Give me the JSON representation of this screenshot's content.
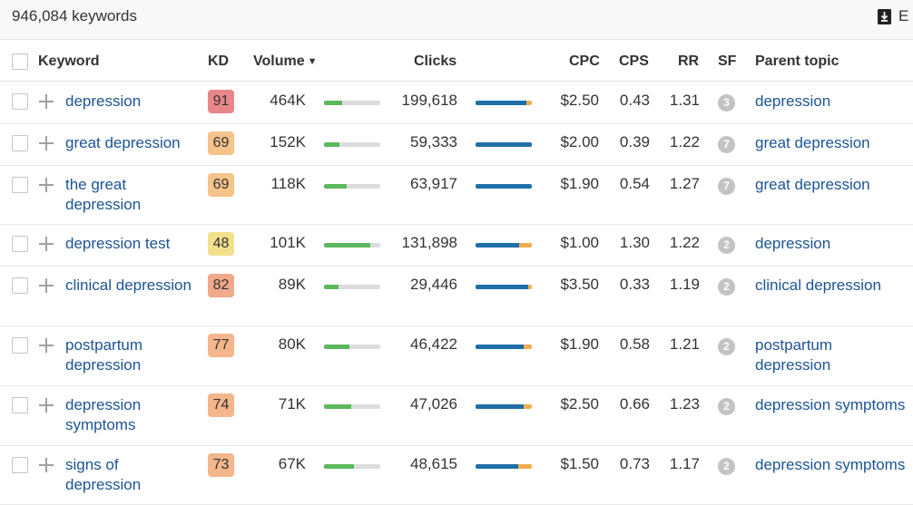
{
  "summary": {
    "keyword_count": "946,084 keywords",
    "export_label": "E"
  },
  "colors": {
    "link": "#1c5494",
    "volume_bar": "#5cb85c",
    "clicks_organic": "#1f6fa8",
    "clicks_paid": "#f0ad4e",
    "bar_track": "#dcdcdc"
  },
  "columns": {
    "keyword": "Keyword",
    "kd": "KD",
    "volume": "Volume",
    "clicks": "Clicks",
    "cpc": "CPC",
    "cps": "CPS",
    "rr": "RR",
    "sf": "SF",
    "parent_topic": "Parent topic"
  },
  "rows": [
    {
      "keyword": "depression",
      "kd": "91",
      "kd_color": "#e8878a",
      "volume": "464K",
      "volume_fill": 0.32,
      "clicks": "199,618",
      "clicks_organic": 0.9,
      "clicks_paid": 0.1,
      "cpc": "$2.50",
      "cps": "0.43",
      "rr": "1.31",
      "sf": "3",
      "parent_topic": "depression"
    },
    {
      "keyword": "great depression",
      "kd": "69",
      "kd_color": "#f6c38a",
      "volume": "152K",
      "volume_fill": 0.28,
      "clicks": "59,333",
      "clicks_organic": 1.0,
      "clicks_paid": 0.0,
      "cpc": "$2.00",
      "cps": "0.39",
      "rr": "1.22",
      "sf": "7",
      "parent_topic": "great depression"
    },
    {
      "keyword": "the great depression",
      "kd": "69",
      "kd_color": "#f6c38a",
      "volume": "118K",
      "volume_fill": 0.4,
      "clicks": "63,917",
      "clicks_organic": 1.0,
      "clicks_paid": 0.0,
      "cpc": "$1.90",
      "cps": "0.54",
      "rr": "1.27",
      "sf": "7",
      "parent_topic": "great depression"
    },
    {
      "keyword": "depression test",
      "kd": "48",
      "kd_color": "#f2e08d",
      "volume": "101K",
      "volume_fill": 0.83,
      "clicks": "131,898",
      "clicks_organic": 0.78,
      "clicks_paid": 0.22,
      "cpc": "$1.00",
      "cps": "1.30",
      "rr": "1.22",
      "sf": "2",
      "parent_topic": "depression"
    },
    {
      "keyword": "clinical depression",
      "kd": "82",
      "kd_color": "#f1a98a",
      "volume": "89K",
      "volume_fill": 0.25,
      "clicks": "29,446",
      "clicks_organic": 0.93,
      "clicks_paid": 0.07,
      "cpc": "$3.50",
      "cps": "0.33",
      "rr": "1.19",
      "sf": "2",
      "parent_topic": "clinical depression"
    },
    {
      "keyword": "postpartum depression",
      "kd": "77",
      "kd_color": "#f4b68a",
      "volume": "80K",
      "volume_fill": 0.45,
      "clicks": "46,422",
      "clicks_organic": 0.86,
      "clicks_paid": 0.14,
      "cpc": "$1.90",
      "cps": "0.58",
      "rr": "1.21",
      "sf": "2",
      "parent_topic": "postpartum depression"
    },
    {
      "keyword": "depression symptoms",
      "kd": "74",
      "kd_color": "#f4b68a",
      "volume": "71K",
      "volume_fill": 0.48,
      "clicks": "47,026",
      "clicks_organic": 0.86,
      "clicks_paid": 0.14,
      "cpc": "$2.50",
      "cps": "0.66",
      "rr": "1.23",
      "sf": "2",
      "parent_topic": "depression symptoms"
    },
    {
      "keyword": "signs of depression",
      "kd": "73",
      "kd_color": "#f4b68a",
      "volume": "67K",
      "volume_fill": 0.54,
      "clicks": "48,615",
      "clicks_organic": 0.75,
      "clicks_paid": 0.25,
      "cpc": "$1.50",
      "cps": "0.73",
      "rr": "1.17",
      "sf": "2",
      "parent_topic": "depression symptoms"
    }
  ]
}
